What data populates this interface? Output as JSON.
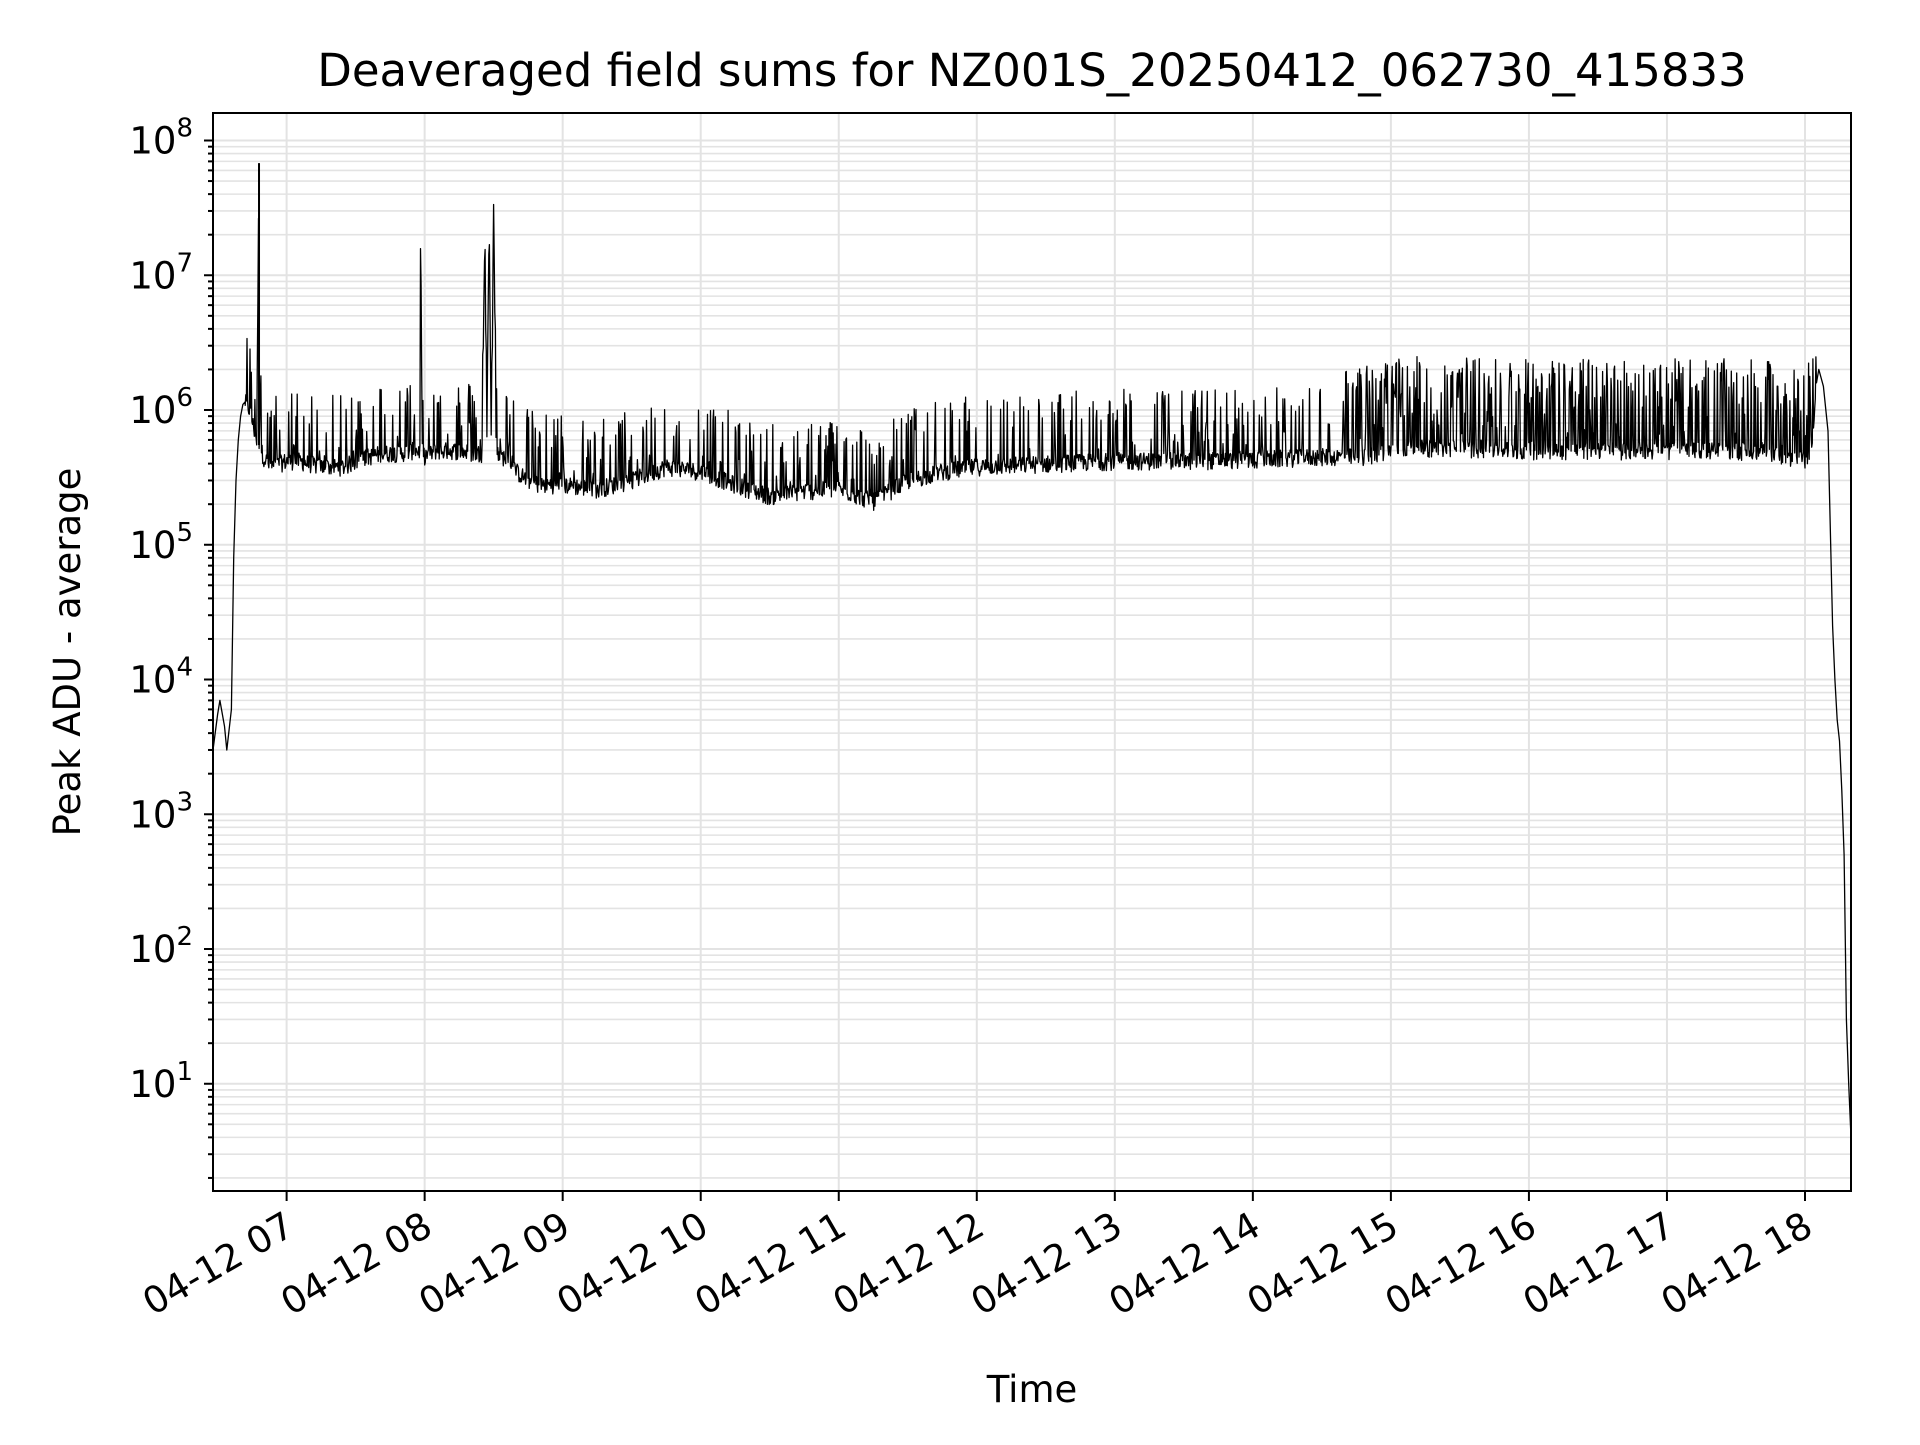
{
  "chart_data": {
    "type": "line",
    "title": "Deaveraged field sums for NZ001S_20250412_062730_415833",
    "xlabel": "Time",
    "ylabel": "Peak ADU - average",
    "yscale": "log",
    "ylim": [
      1.6,
      160000000
    ],
    "xlim": [
      "2025-04-12 06:28",
      "2025-04-12 18:20"
    ],
    "grid": true,
    "line_color": "#000000",
    "x_ticks": [
      "04-12 07",
      "04-12 08",
      "04-12 09",
      "04-12 10",
      "04-12 11",
      "04-12 12",
      "04-12 13",
      "04-12 14",
      "04-12 15",
      "04-12 16",
      "04-12 17",
      "04-12 18"
    ],
    "y_ticks": [
      {
        "base": "10",
        "exp": "1",
        "value": 10
      },
      {
        "base": "10",
        "exp": "2",
        "value": 100
      },
      {
        "base": "10",
        "exp": "3",
        "value": 1000
      },
      {
        "base": "10",
        "exp": "4",
        "value": 10000
      },
      {
        "base": "10",
        "exp": "5",
        "value": 100000
      },
      {
        "base": "10",
        "exp": "6",
        "value": 1000000
      },
      {
        "base": "10",
        "exp": "7",
        "value": 10000000
      },
      {
        "base": "10",
        "exp": "8",
        "value": 100000000
      }
    ],
    "series": [
      {
        "x": [
          "2025-04-12 06:28",
          "2025-04-12 06:30",
          "2025-04-12 06:31",
          "2025-04-12 06:33",
          "2025-04-12 06:34",
          "2025-04-12 06:36",
          "2025-04-12 06:37",
          "2025-04-12 06:38",
          "2025-04-12 06:39",
          "2025-04-12 06:40",
          "2025-04-12 06:41",
          "2025-04-12 06:42",
          "2025-04-12 06:44",
          "2025-04-12 06:46",
          "2025-04-12 06:47",
          "2025-04-12 06:48",
          "2025-04-12 06:48",
          "2025-04-12 06:49",
          "2025-04-12 06:49",
          "2025-04-12 06:50",
          "2025-04-12 06:52",
          "2025-04-12 06:54",
          "2025-04-12 06:57",
          "2025-04-12 07:00",
          "2025-04-12 07:05",
          "2025-04-12 07:10",
          "2025-04-12 07:15",
          "2025-04-12 07:20",
          "2025-04-12 07:25",
          "2025-04-12 07:30",
          "2025-04-12 07:35",
          "2025-04-12 07:40",
          "2025-04-12 07:45",
          "2025-04-12 07:50",
          "2025-04-12 07:55",
          "2025-04-12 07:58",
          "2025-04-12 07:58",
          "2025-04-12 07:59",
          "2025-04-12 08:05",
          "2025-04-12 08:10",
          "2025-04-12 08:15",
          "2025-04-12 08:20",
          "2025-04-12 08:25",
          "2025-04-12 08:26",
          "2025-04-12 08:27",
          "2025-04-12 08:28",
          "2025-04-12 08:29",
          "2025-04-12 08:30",
          "2025-04-12 08:31",
          "2025-04-12 08:32",
          "2025-04-12 08:35",
          "2025-04-12 08:40",
          "2025-04-12 08:45",
          "2025-04-12 08:50",
          "2025-04-12 09:00",
          "2025-04-12 09:15",
          "2025-04-12 09:30",
          "2025-04-12 09:45",
          "2025-04-12 10:00",
          "2025-04-12 10:15",
          "2025-04-12 10:30",
          "2025-04-12 10:45",
          "2025-04-12 11:00",
          "2025-04-12 11:15",
          "2025-04-12 11:30",
          "2025-04-12 11:45",
          "2025-04-12 12:00",
          "2025-04-12 12:30",
          "2025-04-12 13:00",
          "2025-04-12 13:30",
          "2025-04-12 14:00",
          "2025-04-12 14:30",
          "2025-04-12 14:50",
          "2025-04-12 15:00",
          "2025-04-12 15:30",
          "2025-04-12 16:00",
          "2025-04-12 16:30",
          "2025-04-12 17:00",
          "2025-04-12 17:30",
          "2025-04-12 17:45",
          "2025-04-12 17:50",
          "2025-04-12 17:55",
          "2025-04-12 18:00",
          "2025-04-12 18:02",
          "2025-04-12 18:04",
          "2025-04-12 18:05",
          "2025-04-12 18:06",
          "2025-04-12 18:08",
          "2025-04-12 18:10",
          "2025-04-12 18:12",
          "2025-04-12 18:13",
          "2025-04-12 18:14",
          "2025-04-12 18:15",
          "2025-04-12 18:16",
          "2025-04-12 18:17",
          "2025-04-12 18:18",
          "2025-04-12 18:19",
          "2025-04-12 18:20"
        ],
        "y": [
          3000,
          5500,
          7000,
          4500,
          3000,
          6000,
          80000,
          300000,
          600000,
          900000,
          1100000,
          1150000,
          1000000,
          700000,
          600000,
          68000000,
          550000,
          2500000,
          500000,
          450000,
          400000,
          380000,
          400000,
          420000,
          420000,
          400000,
          380000,
          380000,
          380000,
          420000,
          450000,
          470000,
          480000,
          480000,
          500000,
          500000,
          32000000,
          450000,
          500000,
          500000,
          500000,
          480000,
          480000,
          15000000,
          500000,
          27000000,
          500000,
          38000000,
          600000,
          450000,
          450000,
          350000,
          300000,
          280000,
          280000,
          260000,
          300000,
          380000,
          350000,
          280000,
          230000,
          250000,
          260000,
          210000,
          300000,
          350000,
          380000,
          400000,
          420000,
          420000,
          430000,
          450000,
          450000,
          520000,
          520000,
          500000,
          500000,
          500000,
          500000,
          480000,
          450000,
          420000,
          430000,
          500000,
          800000,
          1500000,
          2000000,
          1500000,
          700000,
          25000,
          10000,
          5000,
          3500,
          1500,
          500,
          30,
          10,
          4
        ]
      }
    ]
  }
}
